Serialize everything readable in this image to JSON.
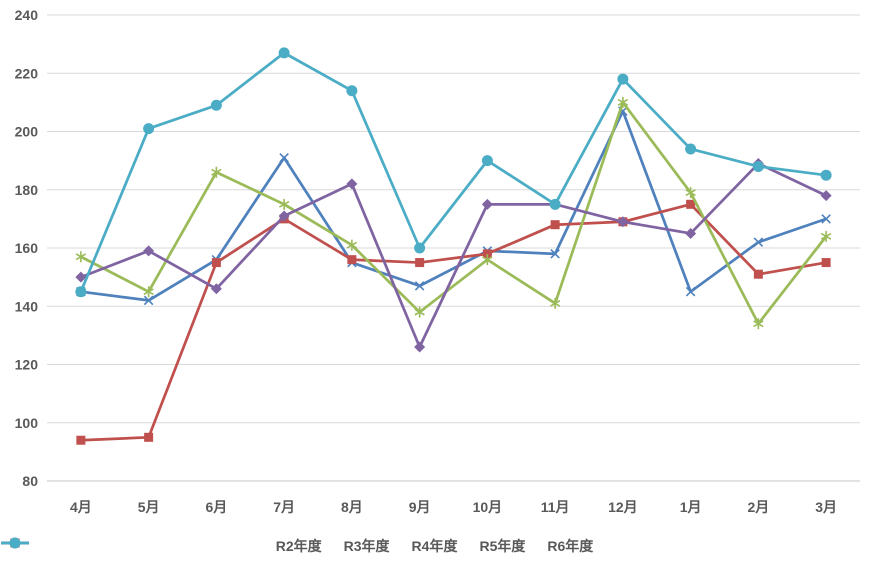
{
  "chart_data": {
    "type": "line",
    "title": "",
    "xlabel": "",
    "ylabel": "",
    "categories": [
      "4月",
      "5月",
      "6月",
      "7月",
      "8月",
      "9月",
      "10月",
      "11月",
      "12月",
      "1月",
      "2月",
      "3月"
    ],
    "series": [
      {
        "name": "R2年度",
        "color": "#4F81BD",
        "marker": "x",
        "values": [
          145,
          142,
          156,
          191,
          155,
          147,
          159,
          158,
          207,
          145,
          162,
          170
        ]
      },
      {
        "name": "R3年度",
        "color": "#C0504D",
        "marker": "square",
        "values": [
          94,
          95,
          155,
          170,
          156,
          155,
          158,
          168,
          169,
          175,
          151,
          155
        ]
      },
      {
        "name": "R4年度",
        "color": "#9BBB59",
        "marker": "asterisk",
        "values": [
          157,
          145,
          186,
          175,
          161,
          138,
          156,
          141,
          210,
          179,
          134,
          164
        ]
      },
      {
        "name": "R5年度",
        "color": "#8064A2",
        "marker": "diamond",
        "values": [
          150,
          159,
          146,
          171,
          182,
          126,
          175,
          175,
          169,
          165,
          189,
          178
        ]
      },
      {
        "name": "R6年度",
        "color": "#4BACC6",
        "marker": "circle",
        "values": [
          145,
          201,
          209,
          227,
          214,
          160,
          190,
          175,
          218,
          194,
          188,
          185
        ]
      }
    ],
    "ylim": [
      80,
      240
    ],
    "ytick_step": 20,
    "grid": true,
    "legend_position": "bottom",
    "axis_label_color": "#595959",
    "gridline_color": "#D9D9D9",
    "axisline_color": "#C6C6C6"
  }
}
